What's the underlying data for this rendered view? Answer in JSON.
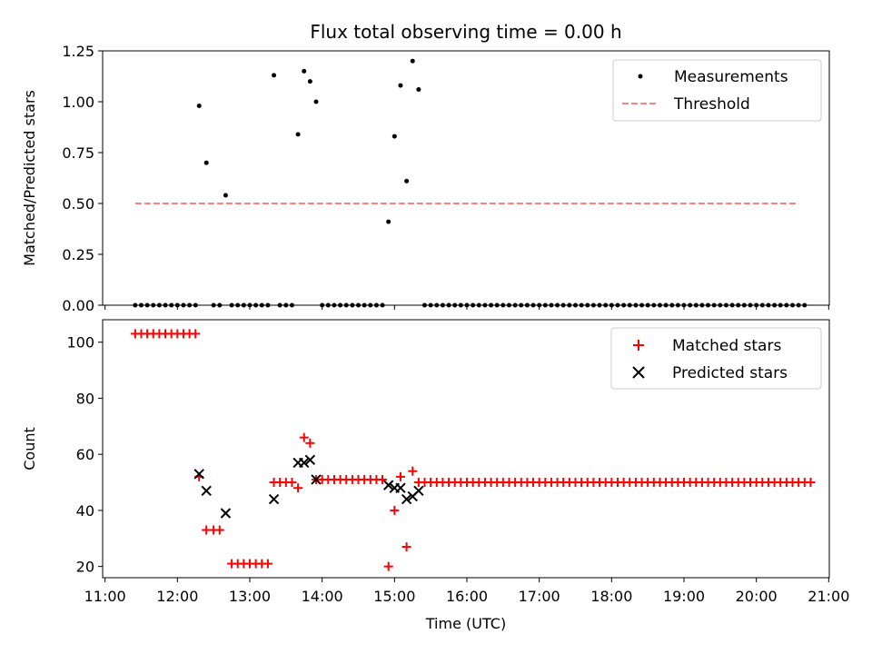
{
  "figure": {
    "title": "Flux total observing time = 0.00 h",
    "xlabel": "Time (UTC)",
    "x_ticks": [
      "11:00",
      "12:00",
      "13:00",
      "14:00",
      "15:00",
      "16:00",
      "17:00",
      "18:00",
      "19:00",
      "20:00",
      "21:00"
    ]
  },
  "colors": {
    "measurement": "#000000",
    "threshold": "#ff7f7f",
    "matched": "#ff0000",
    "predicted": "#000000"
  },
  "chart_data": [
    {
      "type": "scatter",
      "ylabel": "Matched/Predicted stars",
      "xlim": [
        "11:00",
        "21:00"
      ],
      "ylim": [
        0,
        1.25
      ],
      "y_ticks": [
        "0.00",
        "0.25",
        "0.50",
        "0.75",
        "1.00",
        "1.25"
      ],
      "grid": false,
      "legend_position": "top-right",
      "series": [
        {
          "name": "Measurements",
          "marker": "dot",
          "points": [
            [
              "11:25",
              0
            ],
            [
              "11:30",
              0
            ],
            [
              "11:35",
              0
            ],
            [
              "11:40",
              0
            ],
            [
              "11:45",
              0
            ],
            [
              "11:50",
              0
            ],
            [
              "11:55",
              0
            ],
            [
              "12:00",
              0
            ],
            [
              "12:05",
              0
            ],
            [
              "12:10",
              0
            ],
            [
              "12:15",
              0
            ],
            [
              "12:18",
              0.98
            ],
            [
              "12:24",
              0.7
            ],
            [
              "12:30",
              0
            ],
            [
              "12:35",
              0
            ],
            [
              "12:40",
              0.54
            ],
            [
              "12:45",
              0
            ],
            [
              "12:50",
              0
            ],
            [
              "12:55",
              0
            ],
            [
              "13:00",
              0
            ],
            [
              "13:05",
              0
            ],
            [
              "13:10",
              0
            ],
            [
              "13:15",
              0
            ],
            [
              "13:20",
              1.13
            ],
            [
              "13:25",
              0
            ],
            [
              "13:30",
              0
            ],
            [
              "13:35",
              0
            ],
            [
              "13:40",
              0.84
            ],
            [
              "13:45",
              1.15
            ],
            [
              "13:50",
              1.1
            ],
            [
              "13:55",
              1.0
            ],
            [
              "13:60",
              0
            ],
            [
              "14:05",
              0
            ],
            [
              "14:10",
              0
            ],
            [
              "14:15",
              0
            ],
            [
              "14:20",
              0
            ],
            [
              "14:25",
              0
            ],
            [
              "14:30",
              0
            ],
            [
              "14:35",
              0
            ],
            [
              "14:40",
              0
            ],
            [
              "14:45",
              0
            ],
            [
              "14:50",
              0
            ],
            [
              "14:55",
              0.41
            ],
            [
              "15:00",
              0.83
            ],
            [
              "15:05",
              1.08
            ],
            [
              "15:10",
              0.61
            ],
            [
              "15:15",
              1.2
            ],
            [
              "15:20",
              1.06
            ],
            [
              "15:25",
              0
            ],
            [
              "15:30",
              0
            ],
            [
              "15:35",
              0
            ],
            [
              "15:40",
              0
            ],
            [
              "15:45",
              0
            ],
            [
              "15:50",
              0
            ],
            [
              "15:55",
              0
            ],
            [
              "16:00",
              0
            ],
            [
              "16:05",
              0
            ],
            [
              "16:10",
              0
            ],
            [
              "16:15",
              0
            ],
            [
              "16:20",
              0
            ],
            [
              "16:25",
              0
            ],
            [
              "16:30",
              0
            ],
            [
              "16:35",
              0
            ],
            [
              "16:40",
              0
            ],
            [
              "16:45",
              0
            ],
            [
              "16:50",
              0
            ],
            [
              "16:55",
              0
            ],
            [
              "17:00",
              0
            ],
            [
              "17:05",
              0
            ],
            [
              "17:10",
              0
            ],
            [
              "17:15",
              0
            ],
            [
              "17:20",
              0
            ],
            [
              "17:25",
              0
            ],
            [
              "17:30",
              0
            ],
            [
              "17:35",
              0
            ],
            [
              "17:40",
              0
            ],
            [
              "17:45",
              0
            ],
            [
              "17:50",
              0
            ],
            [
              "17:55",
              0
            ],
            [
              "18:00",
              0
            ],
            [
              "18:05",
              0
            ],
            [
              "18:10",
              0
            ],
            [
              "18:15",
              0
            ],
            [
              "18:20",
              0
            ],
            [
              "18:25",
              0
            ],
            [
              "18:30",
              0
            ],
            [
              "18:35",
              0
            ],
            [
              "18:40",
              0
            ],
            [
              "18:45",
              0
            ],
            [
              "18:50",
              0
            ],
            [
              "18:55",
              0
            ],
            [
              "19:00",
              0
            ],
            [
              "19:05",
              0
            ],
            [
              "19:10",
              0
            ],
            [
              "19:15",
              0
            ],
            [
              "19:20",
              0
            ],
            [
              "19:25",
              0
            ],
            [
              "19:30",
              0
            ],
            [
              "19:35",
              0
            ],
            [
              "19:40",
              0
            ],
            [
              "19:45",
              0
            ],
            [
              "19:50",
              0
            ],
            [
              "19:55",
              0
            ],
            [
              "20:00",
              0
            ],
            [
              "20:05",
              0
            ],
            [
              "20:10",
              0
            ],
            [
              "20:15",
              0
            ],
            [
              "20:20",
              0
            ],
            [
              "20:25",
              0
            ],
            [
              "20:30",
              0
            ],
            [
              "20:35",
              0
            ],
            [
              "20:40",
              0
            ]
          ]
        },
        {
          "name": "Threshold",
          "style": "dashed-line",
          "points": [
            [
              "11:25",
              0.5
            ],
            [
              "20:35",
              0.5
            ]
          ]
        }
      ]
    },
    {
      "type": "scatter",
      "ylabel": "Count",
      "xlim": [
        "11:00",
        "21:00"
      ],
      "ylim": [
        16,
        108
      ],
      "y_ticks": [
        "20",
        "40",
        "60",
        "80",
        "100"
      ],
      "grid": false,
      "legend_position": "top-right",
      "series": [
        {
          "name": "Matched stars",
          "marker": "plus",
          "points": [
            [
              "11:25",
              103
            ],
            [
              "11:30",
              103
            ],
            [
              "11:35",
              103
            ],
            [
              "11:40",
              103
            ],
            [
              "11:45",
              103
            ],
            [
              "11:50",
              103
            ],
            [
              "11:55",
              103
            ],
            [
              "12:00",
              103
            ],
            [
              "12:05",
              103
            ],
            [
              "12:10",
              103
            ],
            [
              "12:15",
              103
            ],
            [
              "12:18",
              52
            ],
            [
              "12:24",
              33
            ],
            [
              "12:30",
              33
            ],
            [
              "12:35",
              33
            ],
            [
              "12:45",
              21
            ],
            [
              "12:50",
              21
            ],
            [
              "12:55",
              21
            ],
            [
              "13:00",
              21
            ],
            [
              "13:05",
              21
            ],
            [
              "13:10",
              21
            ],
            [
              "13:15",
              21
            ],
            [
              "13:20",
              50
            ],
            [
              "13:25",
              50
            ],
            [
              "13:30",
              50
            ],
            [
              "13:35",
              50
            ],
            [
              "13:40",
              48
            ],
            [
              "13:45",
              66
            ],
            [
              "13:50",
              64
            ],
            [
              "13:55",
              51
            ],
            [
              "14:00",
              51
            ],
            [
              "14:05",
              51
            ],
            [
              "14:10",
              51
            ],
            [
              "14:15",
              51
            ],
            [
              "14:20",
              51
            ],
            [
              "14:25",
              51
            ],
            [
              "14:30",
              51
            ],
            [
              "14:35",
              51
            ],
            [
              "14:40",
              51
            ],
            [
              "14:45",
              51
            ],
            [
              "14:50",
              51
            ],
            [
              "14:55",
              20
            ],
            [
              "15:00",
              40
            ],
            [
              "15:05",
              52
            ],
            [
              "15:10",
              27
            ],
            [
              "15:15",
              54
            ],
            [
              "15:20",
              50
            ],
            [
              "15:25",
              50
            ],
            [
              "15:30",
              50
            ],
            [
              "15:35",
              50
            ],
            [
              "15:40",
              50
            ],
            [
              "15:45",
              50
            ],
            [
              "15:50",
              50
            ],
            [
              "15:55",
              50
            ],
            [
              "16:00",
              50
            ],
            [
              "16:05",
              50
            ],
            [
              "16:10",
              50
            ],
            [
              "16:15",
              50
            ],
            [
              "16:20",
              50
            ],
            [
              "16:25",
              50
            ],
            [
              "16:30",
              50
            ],
            [
              "16:35",
              50
            ],
            [
              "16:40",
              50
            ],
            [
              "16:45",
              50
            ],
            [
              "16:50",
              50
            ],
            [
              "16:55",
              50
            ],
            [
              "17:00",
              50
            ],
            [
              "17:05",
              50
            ],
            [
              "17:10",
              50
            ],
            [
              "17:15",
              50
            ],
            [
              "17:20",
              50
            ],
            [
              "17:25",
              50
            ],
            [
              "17:30",
              50
            ],
            [
              "17:35",
              50
            ],
            [
              "17:40",
              50
            ],
            [
              "17:45",
              50
            ],
            [
              "17:50",
              50
            ],
            [
              "17:55",
              50
            ],
            [
              "18:00",
              50
            ],
            [
              "18:05",
              50
            ],
            [
              "18:10",
              50
            ],
            [
              "18:15",
              50
            ],
            [
              "18:20",
              50
            ],
            [
              "18:25",
              50
            ],
            [
              "18:30",
              50
            ],
            [
              "18:35",
              50
            ],
            [
              "18:40",
              50
            ],
            [
              "18:45",
              50
            ],
            [
              "18:50",
              50
            ],
            [
              "18:55",
              50
            ],
            [
              "19:00",
              50
            ],
            [
              "19:05",
              50
            ],
            [
              "19:10",
              50
            ],
            [
              "19:15",
              50
            ],
            [
              "19:20",
              50
            ],
            [
              "19:25",
              50
            ],
            [
              "19:30",
              50
            ],
            [
              "19:35",
              50
            ],
            [
              "19:40",
              50
            ],
            [
              "19:45",
              50
            ],
            [
              "19:50",
              50
            ],
            [
              "19:55",
              50
            ],
            [
              "20:00",
              50
            ],
            [
              "20:05",
              50
            ],
            [
              "20:10",
              50
            ],
            [
              "20:15",
              50
            ],
            [
              "20:20",
              50
            ],
            [
              "20:25",
              50
            ],
            [
              "20:30",
              50
            ],
            [
              "20:35",
              50
            ],
            [
              "20:40",
              50
            ],
            [
              "20:45",
              50
            ]
          ]
        },
        {
          "name": "Predicted stars",
          "marker": "x",
          "points": [
            [
              "12:18",
              53
            ],
            [
              "12:24",
              47
            ],
            [
              "12:40",
              39
            ],
            [
              "13:20",
              44
            ],
            [
              "13:40",
              57
            ],
            [
              "13:45",
              57
            ],
            [
              "13:50",
              58
            ],
            [
              "13:55",
              51
            ],
            [
              "14:55",
              49
            ],
            [
              "15:00",
              48
            ],
            [
              "15:05",
              48
            ],
            [
              "15:10",
              44
            ],
            [
              "15:15",
              45
            ],
            [
              "15:20",
              47
            ]
          ]
        }
      ]
    }
  ]
}
